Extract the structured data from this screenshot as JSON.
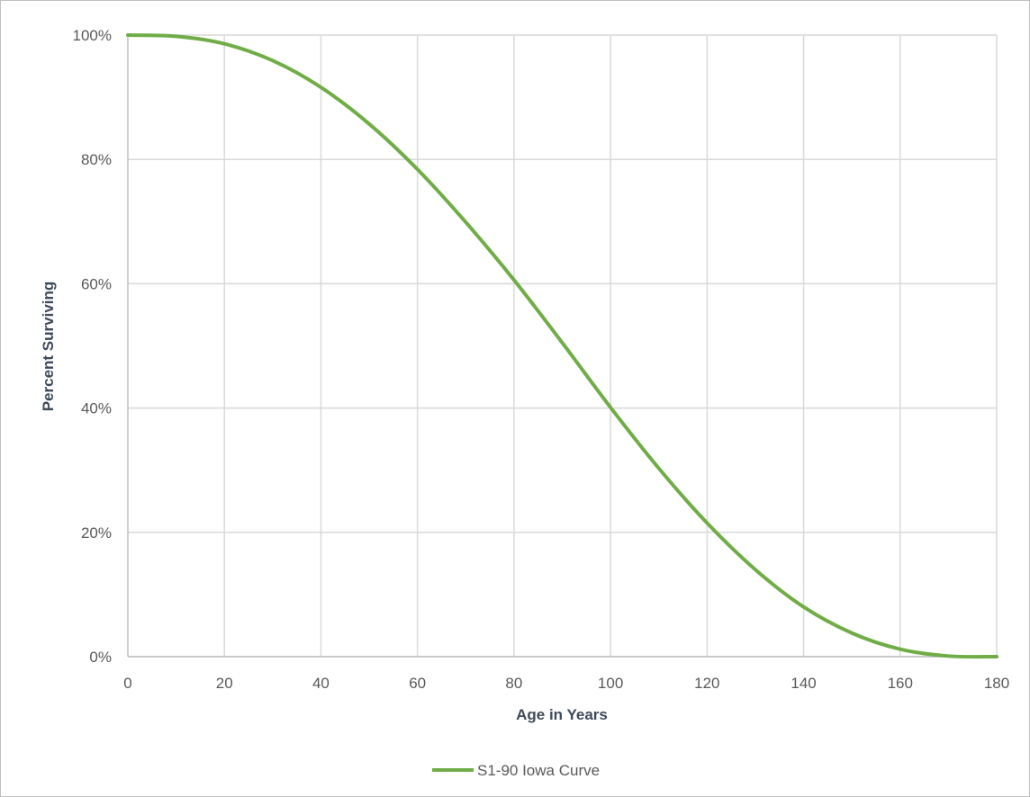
{
  "chart_data": {
    "type": "line",
    "title": "",
    "xlabel": "Age in Years",
    "ylabel": "Percent Surviving",
    "xlim": [
      0,
      180
    ],
    "ylim": [
      0,
      100
    ],
    "x_ticks": [
      0,
      20,
      40,
      60,
      80,
      100,
      120,
      140,
      160,
      180
    ],
    "y_ticks": [
      0,
      20,
      40,
      60,
      80,
      100
    ],
    "y_tick_labels": [
      "0%",
      "20%",
      "40%",
      "60%",
      "80%",
      "100%"
    ],
    "grid": true,
    "legend_position": "bottom",
    "series": [
      {
        "name": "S1-90 Iowa Curve",
        "color": "#70ad47",
        "x": [
          0,
          10,
          20,
          30,
          40,
          50,
          60,
          70,
          80,
          90,
          100,
          110,
          120,
          130,
          140,
          150,
          160,
          170,
          180
        ],
        "y": [
          100,
          99.8,
          98.6,
          95.9,
          91.6,
          85.7,
          78.4,
          69.9,
          60.6,
          50.5,
          40.1,
          30.3,
          21.5,
          14.0,
          8.0,
          3.8,
          1.2,
          0.1,
          0
        ]
      }
    ]
  }
}
